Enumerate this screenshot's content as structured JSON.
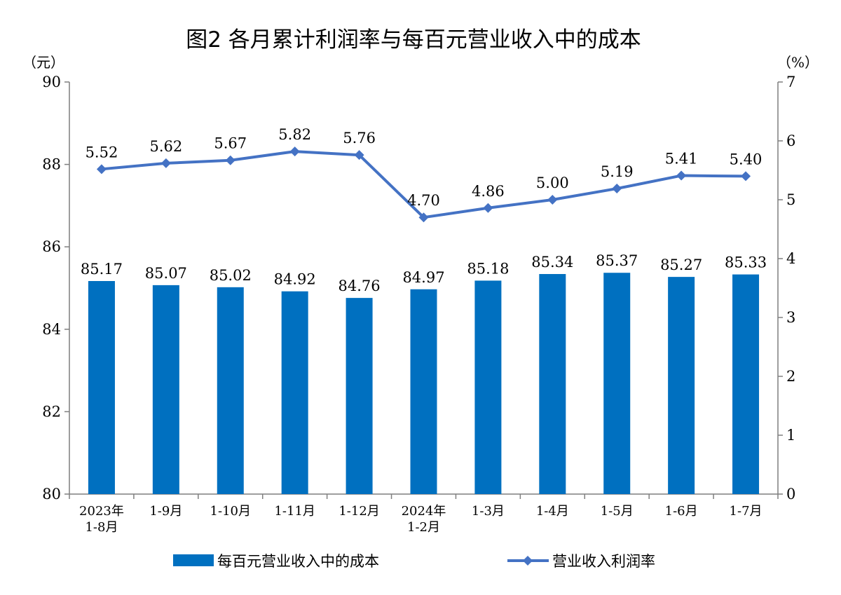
{
  "chart_data": {
    "type": "bar+line",
    "title": "图2  各月累计利润率与每百元营业收入中的成本",
    "left_unit": "（元）",
    "right_unit": "（%）",
    "categories": [
      [
        "2023年",
        "1-8月"
      ],
      [
        "1-9月"
      ],
      [
        "1-10月"
      ],
      [
        "1-11月"
      ],
      [
        "1-12月"
      ],
      [
        "2024年",
        "1-2月"
      ],
      [
        "1-3月"
      ],
      [
        "1-4月"
      ],
      [
        "1-5月"
      ],
      [
        "1-6月"
      ],
      [
        "1-7月"
      ]
    ],
    "left_axis": {
      "min": 80,
      "max": 90,
      "ticks": [
        80,
        82,
        84,
        86,
        88,
        90
      ]
    },
    "right_axis": {
      "min": 0,
      "max": 7,
      "ticks": [
        0,
        1,
        2,
        3,
        4,
        5,
        6,
        7
      ]
    },
    "series": [
      {
        "name": "每百元营业收入中的成本",
        "type": "bar",
        "axis": "left",
        "color": "#0070C0",
        "values": [
          85.17,
          85.07,
          85.02,
          84.92,
          84.76,
          84.97,
          85.18,
          85.34,
          85.37,
          85.27,
          85.33
        ],
        "labels": [
          "85.17",
          "85.07",
          "85.02",
          "84.92",
          "84.76",
          "84.97",
          "85.18",
          "85.34",
          "85.37",
          "85.27",
          "85.33"
        ]
      },
      {
        "name": "营业收入利润率",
        "type": "line",
        "axis": "right",
        "color": "#4472C4",
        "marker": "diamond",
        "values": [
          5.52,
          5.62,
          5.67,
          5.82,
          5.76,
          4.7,
          4.86,
          5.0,
          5.19,
          5.41,
          5.4
        ],
        "labels": [
          "5.52",
          "5.62",
          "5.67",
          "5.82",
          "5.76",
          "4.70",
          "4.86",
          "5.00",
          "5.19",
          "5.41",
          "5.40"
        ]
      }
    ],
    "grid": false,
    "legend_position": "bottom"
  }
}
